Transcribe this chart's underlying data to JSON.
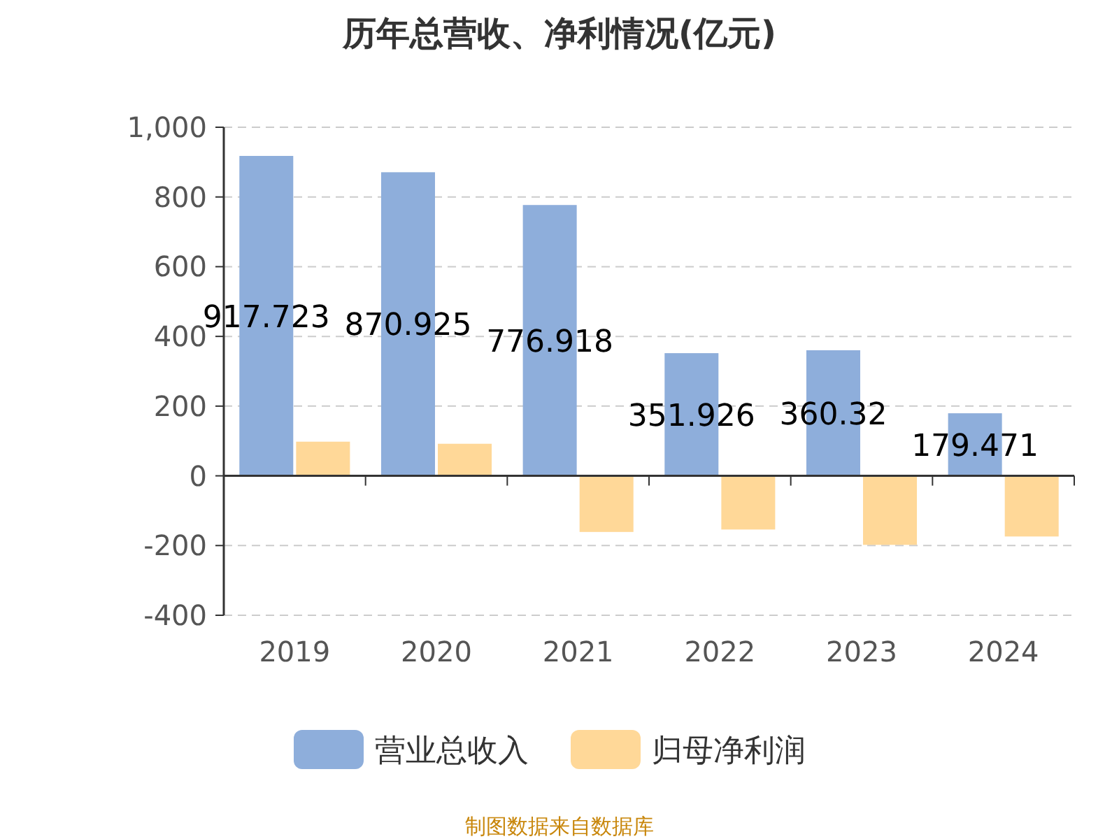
{
  "chart_data": {
    "type": "bar",
    "title": "历年总营收、净利情况(亿元)",
    "categories": [
      "2019",
      "2020",
      "2021",
      "2022",
      "2023",
      "2024"
    ],
    "series": [
      {
        "name": "营业总收入",
        "color": "#8eaedb",
        "values": [
          917.723,
          870.925,
          776.918,
          351.926,
          360.32,
          179.471
        ],
        "value_labels": [
          "917.723",
          "870.925",
          "776.918",
          "351.926",
          "360.32",
          "179.471"
        ]
      },
      {
        "name": "归母净利润",
        "color": "#ffd898",
        "values": [
          98,
          92,
          -161,
          -154,
          -198,
          -174
        ]
      }
    ],
    "ylim": [
      -400,
      1000
    ],
    "yticks": [
      -400,
      -200,
      0,
      200,
      400,
      600,
      800,
      {
        "value": 1000,
        "label": "1,000"
      }
    ],
    "grid": "y",
    "legend": "bottom",
    "annotations": [
      "制图数据来自数据库"
    ]
  }
}
